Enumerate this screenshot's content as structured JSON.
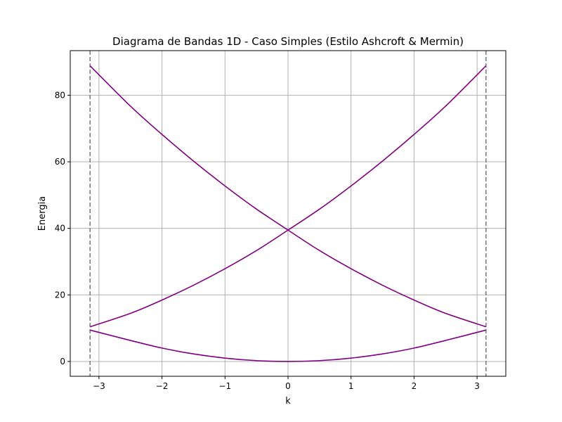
{
  "chart_data": {
    "type": "line",
    "title": "Diagrama de Bandas 1D - Caso Simples (Estilo Ashcroft & Mermin)",
    "xlabel": "k",
    "ylabel": "Energia",
    "xlim": [
      -3.456,
      3.456
    ],
    "ylim": [
      -4.45,
      93.4
    ],
    "xticks": [
      -3,
      -2,
      -1,
      0,
      1,
      2,
      3
    ],
    "xtick_labels": [
      "−3",
      "−2",
      "−1",
      "0",
      "1",
      "2",
      "3"
    ],
    "yticks": [
      0,
      20,
      40,
      60,
      80
    ],
    "ytick_labels": [
      "0",
      "20",
      "40",
      "60",
      "80"
    ],
    "grid": true,
    "vlines": [
      -3.1416,
      3.1416
    ],
    "line_color": "#800080",
    "vline_color": "#808080",
    "grid_color": "#b0b0b0",
    "series": [
      {
        "x": [
          -3.1416,
          -2.5,
          -2,
          -1.5,
          -1,
          -0.5,
          0,
          0.5,
          1,
          1.5,
          2,
          2.5,
          3.1416
        ],
        "y": [
          9.43,
          6.32,
          4.03,
          2.27,
          1.01,
          0.25,
          0,
          0.25,
          1.01,
          2.27,
          4.03,
          6.32,
          9.43
        ]
      },
      {
        "x": [
          -3.1416,
          -2.5,
          -2,
          -1.5,
          -1,
          -0.5,
          0,
          0.5,
          1,
          1.5,
          2,
          2.5,
          3.1416
        ],
        "y": [
          10.43,
          14.47,
          18.46,
          22.91,
          27.87,
          33.33,
          39.48,
          45.78,
          52.75,
          60.23,
          68.22,
          76.71,
          88.83
        ]
      },
      {
        "x": [
          -3.1416,
          -2.5,
          -2,
          -1.5,
          -1,
          -0.5,
          0,
          0.5,
          1,
          1.5,
          2,
          2.5,
          3.1416
        ],
        "y": [
          88.83,
          76.71,
          68.22,
          60.23,
          52.75,
          45.78,
          39.48,
          33.33,
          27.87,
          22.91,
          18.46,
          14.47,
          10.43
        ]
      }
    ]
  }
}
